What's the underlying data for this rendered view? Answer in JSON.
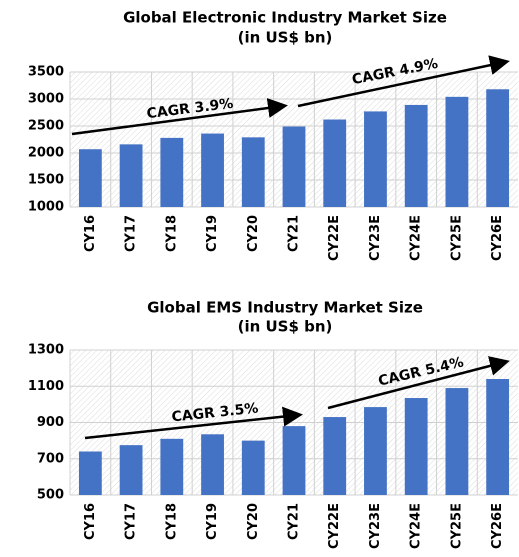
{
  "chart_data": [
    {
      "type": "bar",
      "title": "Global  Electronic Industry Market Size",
      "subtitle": "(in US$ bn)",
      "categories": [
        "CY16",
        "CY17",
        "CY18",
        "CY19",
        "CY20",
        "CY21",
        "CY22E",
        "CY23E",
        "CY24E",
        "CY25E",
        "CY26E"
      ],
      "values": [
        2070,
        2160,
        2280,
        2360,
        2290,
        2490,
        2620,
        2770,
        2890,
        3040,
        3180
      ],
      "color": "#4472c4",
      "ylim": [
        1000,
        3500
      ],
      "yticks": [
        1000,
        1500,
        2000,
        2500,
        3000,
        3500
      ],
      "grid": true,
      "annotations": [
        "CAGR 3.9%",
        "CAGR 4.9%"
      ]
    },
    {
      "type": "bar",
      "title": "Global  EMS Industry Market Size",
      "subtitle": "(in US$ bn)",
      "categories": [
        "CY16",
        "CY17",
        "CY18",
        "CY19",
        "CY20",
        "CY21",
        "CY22E",
        "CY23E",
        "CY24E",
        "CY25E",
        "CY26E"
      ],
      "values": [
        740,
        775,
        810,
        835,
        800,
        880,
        930,
        985,
        1035,
        1090,
        1140
      ],
      "color": "#4472c4",
      "ylim": [
        500,
        1300
      ],
      "yticks": [
        500,
        700,
        900,
        1100,
        1300
      ],
      "grid": true,
      "annotations": [
        "CAGR 3.5%",
        "CAGR 5.4%"
      ]
    }
  ]
}
